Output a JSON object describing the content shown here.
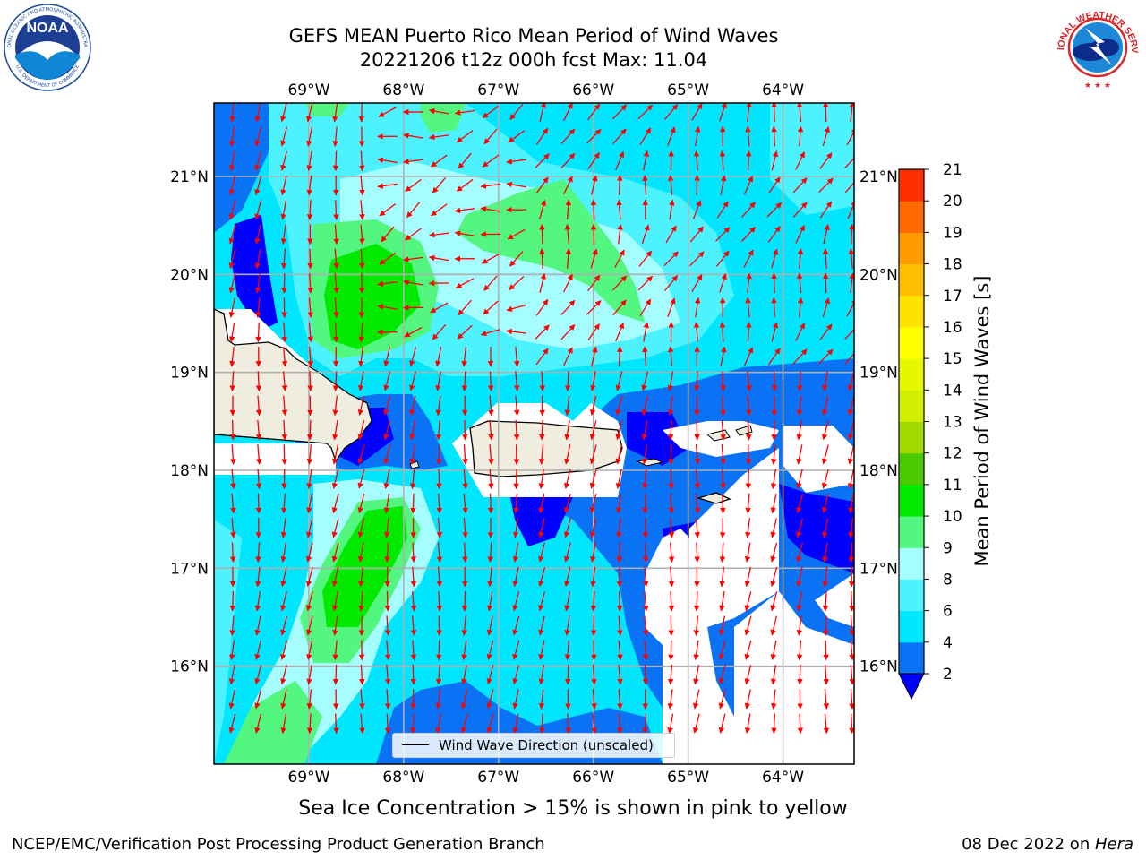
{
  "header": {
    "title_line1": "GEFS MEAN Puerto Rico Mean Period of Wind Waves",
    "title_line2": "20221206 t12z 000h fcst   Max: 11.04"
  },
  "logos": {
    "left": {
      "icon": "noaa-logo",
      "text": "NOAA",
      "ring_top": "NATIONAL OCEANIC AND ATMOSPHERIC ADMINISTRATION",
      "ring_bottom": "U.S. DEPARTMENT OF COMMERCE"
    },
    "right": {
      "icon": "national-weather-service-logo",
      "ring_text": "NATIONAL WEATHER SERVICE"
    }
  },
  "map": {
    "lon_labels": [
      "69°W",
      "68°W",
      "67°W",
      "66°W",
      "65°W",
      "64°W"
    ],
    "lat_labels": [
      "21°N",
      "20°N",
      "19°N",
      "18°N",
      "17°N",
      "16°N"
    ],
    "extent": {
      "lon_min": -70.0,
      "lon_max": -63.25,
      "lat_min": 15.0,
      "lat_max": 21.75
    },
    "legend_label": "Wind Wave Direction (unscaled)",
    "arrow_color": "#ff0000",
    "land_color": "#efeddf",
    "no_data_color": "#ffffff"
  },
  "colorbar": {
    "title": "Mean Period of Wind Waves [s]",
    "ticks": [
      "2",
      "4",
      "6",
      "8",
      "9",
      "10",
      "11",
      "12",
      "13",
      "14",
      "15",
      "16",
      "17",
      "18",
      "19",
      "20",
      "21"
    ],
    "colors": [
      "#0a73f5",
      "#00e6ff",
      "#4df2ff",
      "#a6fdff",
      "#53f67e",
      "#00ea00",
      "#4acb00",
      "#a0d900",
      "#d2ee00",
      "#e4f900",
      "#ffff00",
      "#ffe300",
      "#ffbf00",
      "#ff9a00",
      "#ff6a00",
      "#ff3000",
      "#ff0000"
    ],
    "under_color": "#0000ff"
  },
  "caption": "Sea Ice Concentration > 15% is shown in pink to yellow",
  "footer": {
    "left": "NCEP/EMC/Verification Post Processing Product Generation Branch",
    "right_prefix": "08 Dec 2022 on ",
    "right_host": "Hera"
  }
}
